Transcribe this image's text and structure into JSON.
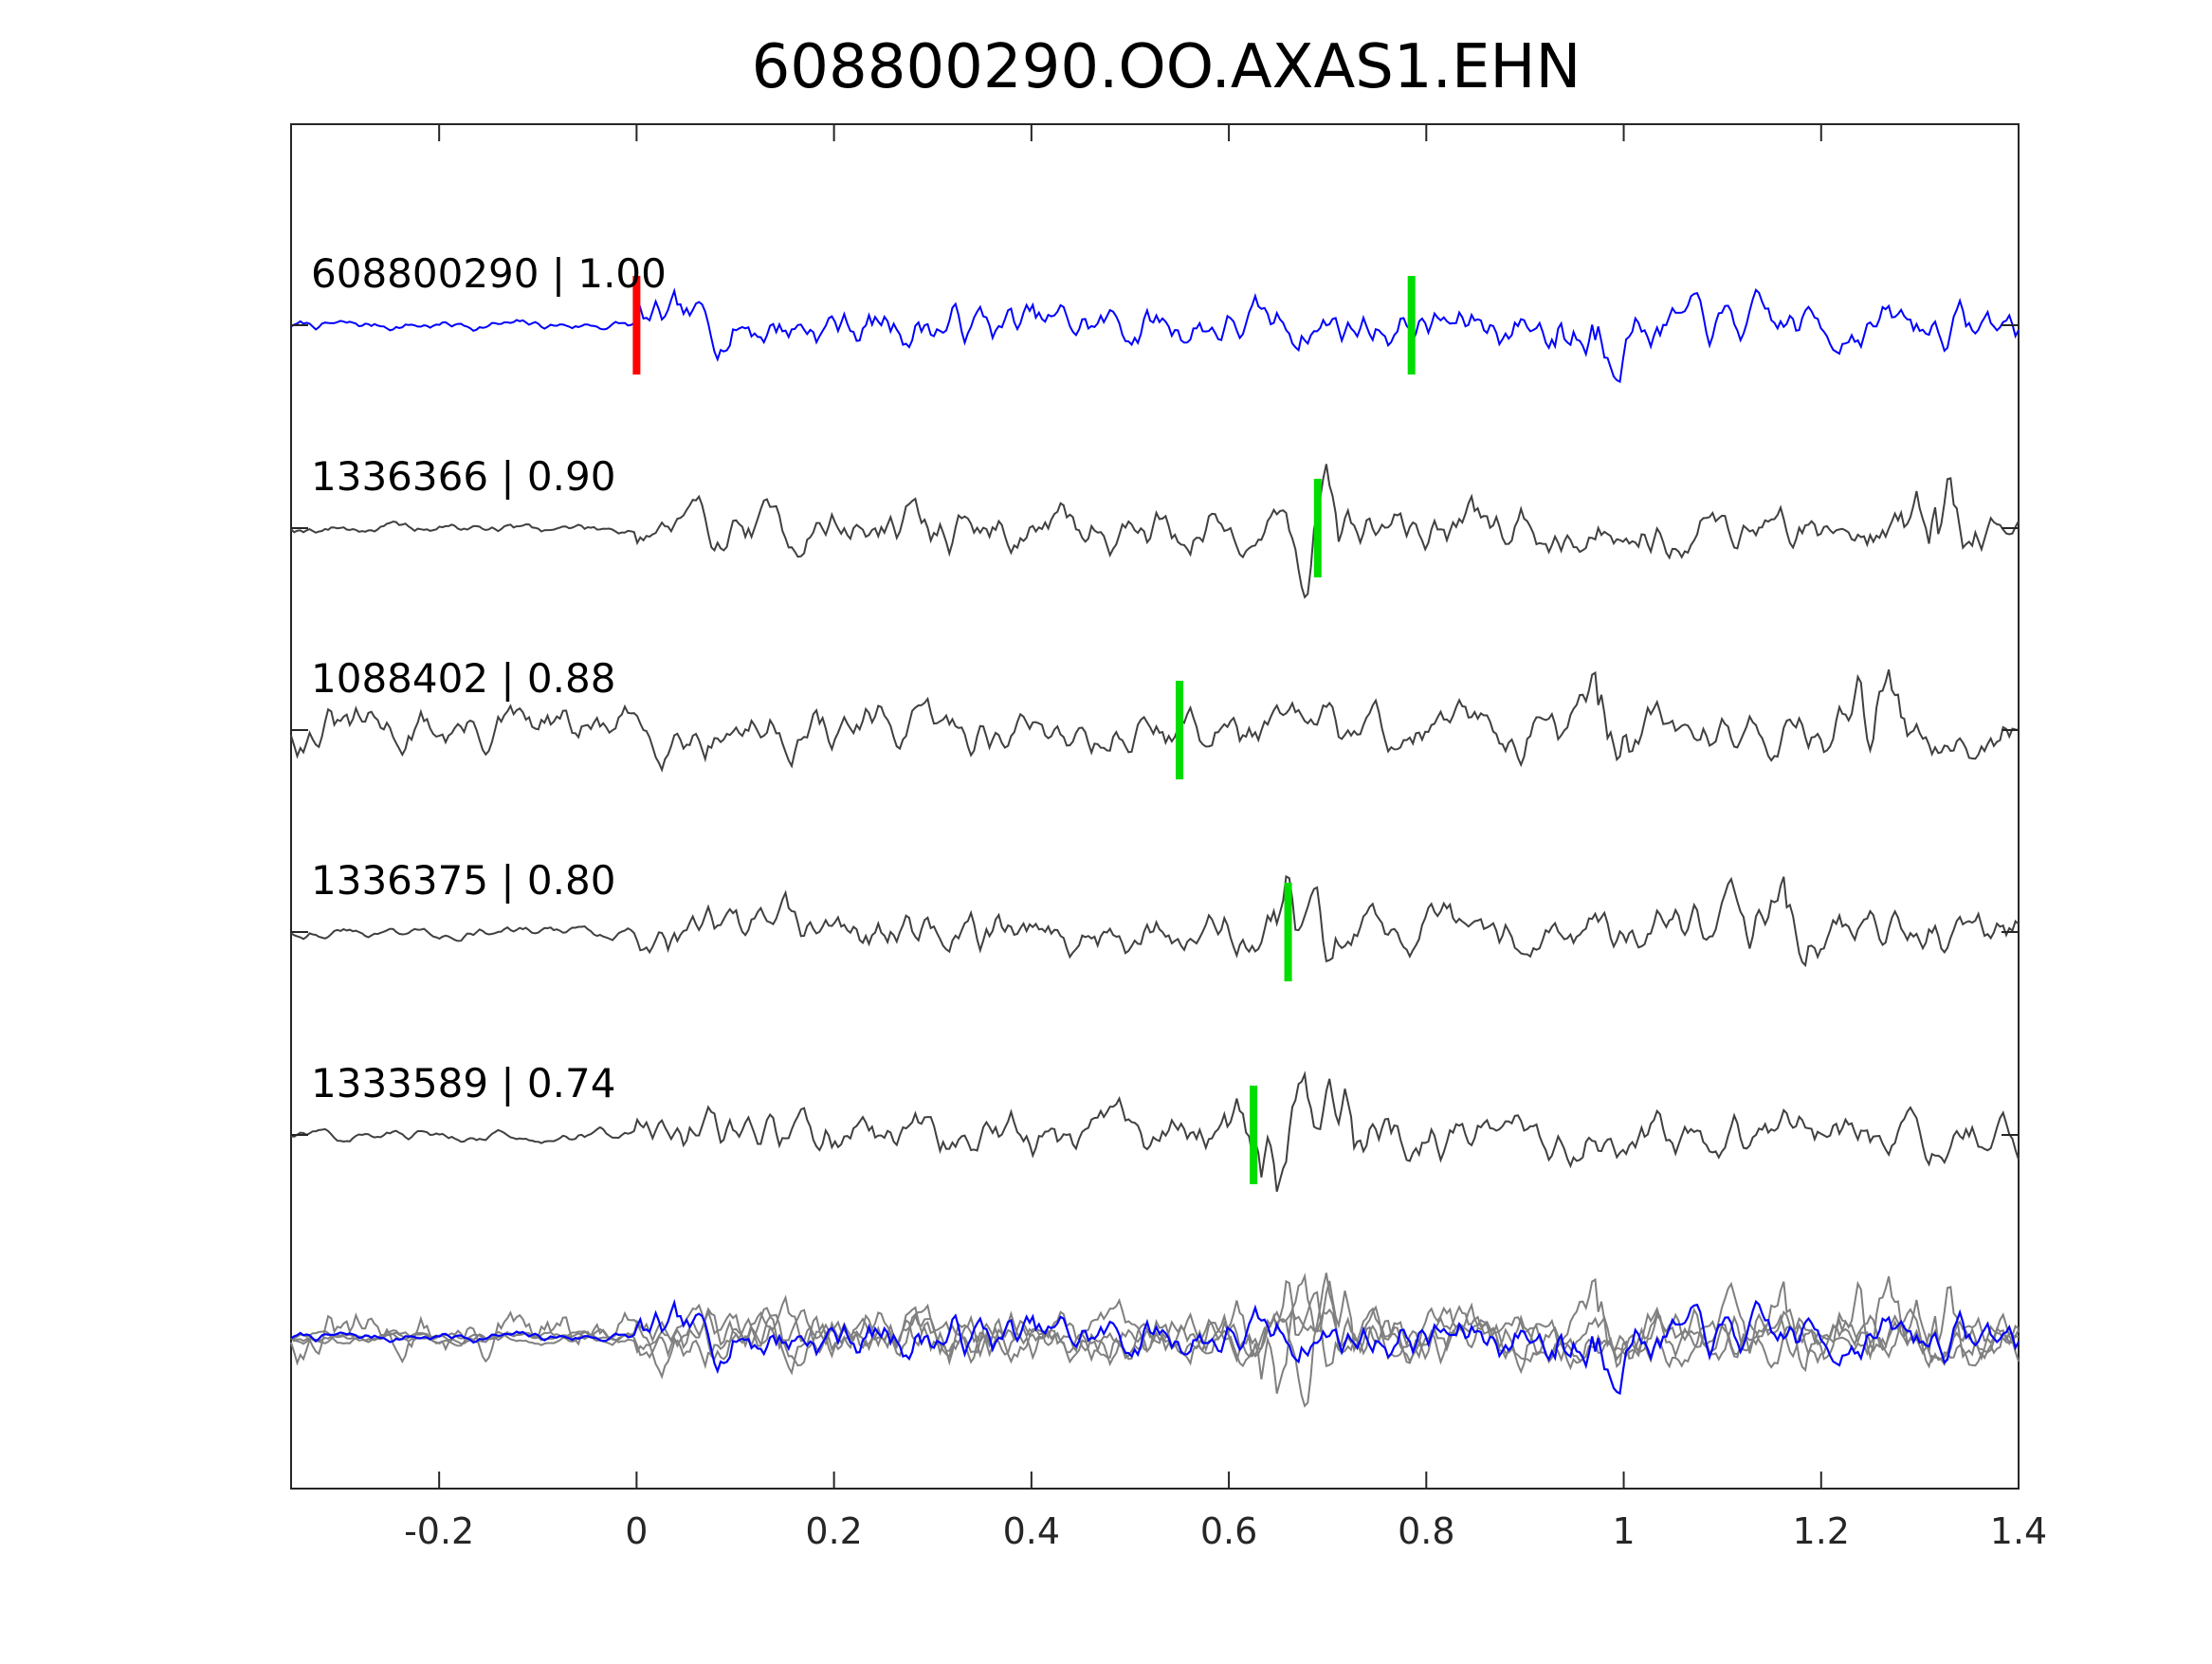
{
  "chart_data": {
    "type": "line",
    "title": "608800290.OO.AXAS1.EHN",
    "xlabel": "",
    "ylabel": "",
    "xlim": [
      -0.35,
      1.4
    ],
    "xticks": [
      "-0.2",
      "0",
      "0.2",
      "0.4",
      "0.6",
      "0.8",
      "1",
      "1.2",
      "1.4"
    ],
    "xtick_values": [
      -0.2,
      0,
      0.2,
      0.4,
      0.6,
      0.8,
      1,
      1.2,
      1.4
    ],
    "grid": false,
    "legend": "none",
    "colors": {
      "reference_trace": "#0000ff",
      "template_trace": "#404040",
      "overlay_trace": "#808080",
      "reference_pick": "#ff0000",
      "arrival_pick": "#00dd00",
      "axes": "#262626"
    },
    "traces": [
      {
        "label": "608800290 | 1.00",
        "id": "608800290",
        "correlation": 1.0,
        "color": "#0000ff",
        "is_reference": true,
        "red_pick_time": 0.0,
        "green_pick_time": 0.785,
        "onset_time": 0.0,
        "burst_times": [
          0.96
        ],
        "seed": 7
      },
      {
        "label": "1336366 | 0.90",
        "id": "1336366",
        "correlation": 0.9,
        "color": "#404040",
        "is_reference": false,
        "green_pick_time": 0.69,
        "onset_time": 0.0,
        "burst_times": [
          0.69,
          1.32
        ],
        "seed": 19
      },
      {
        "label": "1088402 | 0.88",
        "id": "1088402",
        "correlation": 0.88,
        "color": "#404040",
        "is_reference": false,
        "green_pick_time": 0.55,
        "onset_time": -0.35,
        "burst_times": [
          0.98,
          1.25
        ],
        "seed": 31
      },
      {
        "label": "1336375 | 0.80",
        "id": "1336375",
        "correlation": 0.8,
        "color": "#404040",
        "is_reference": false,
        "green_pick_time": 0.66,
        "onset_time": 0.0,
        "burst_times": [
          0.67,
          1.15
        ],
        "seed": 43
      },
      {
        "label": "1333589 | 0.74",
        "id": "1333589",
        "correlation": 0.74,
        "color": "#404040",
        "is_reference": false,
        "green_pick_time": 0.625,
        "onset_time": 0.0,
        "burst_times": [
          0.65,
          0.72
        ],
        "seed": 57
      }
    ],
    "overlay": {
      "description_visible": false,
      "reference_color": "#0000ff",
      "others_color": "#808080"
    }
  }
}
